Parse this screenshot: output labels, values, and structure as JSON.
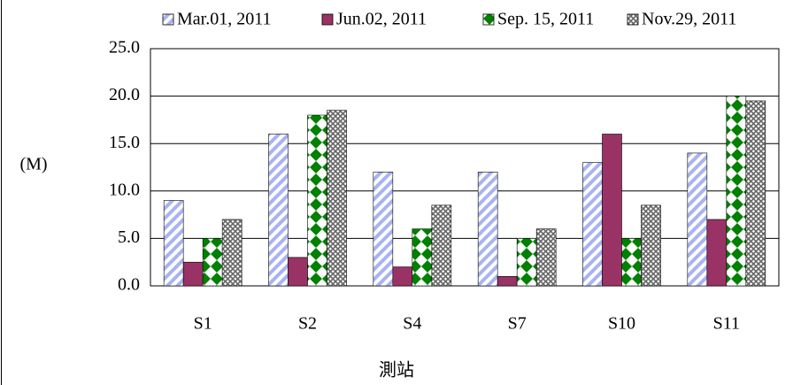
{
  "chart_data": {
    "type": "bar",
    "y_label": "(M)",
    "x_label": "測站",
    "categories": [
      "S1",
      "S2",
      "S4",
      "S7",
      "S10",
      "S11"
    ],
    "series": [
      {
        "name": "Mar.01, 2011",
        "color": "#a9b3f0",
        "pattern": "diagonal-stripes",
        "values": [
          9.0,
          16.0,
          12.0,
          12.0,
          13.0,
          14.0
        ]
      },
      {
        "name": "Jun.02, 2011",
        "color": "#993366",
        "pattern": "solid",
        "values": [
          2.5,
          3.0,
          2.0,
          1.0,
          16.0,
          7.0
        ]
      },
      {
        "name": "Sep. 15, 2011",
        "color": "#008000",
        "pattern": "diamonds",
        "values": [
          5.0,
          18.0,
          6.0,
          5.0,
          5.0,
          20.0
        ]
      },
      {
        "name": "Nov.29, 2011",
        "color": "#666666",
        "pattern": "crosshatch",
        "values": [
          7.0,
          18.5,
          8.5,
          6.0,
          8.5,
          19.5
        ]
      }
    ],
    "ylim": [
      0,
      25
    ],
    "yticks": [
      {
        "value": 0,
        "label": "0.0"
      },
      {
        "value": 5,
        "label": "5.0"
      },
      {
        "value": 10,
        "label": "10.0"
      },
      {
        "value": 15,
        "label": "15.0"
      },
      {
        "value": 20,
        "label": "20.0"
      },
      {
        "value": 25,
        "label": "25.0"
      }
    ],
    "grid": true,
    "legend": "top"
  }
}
